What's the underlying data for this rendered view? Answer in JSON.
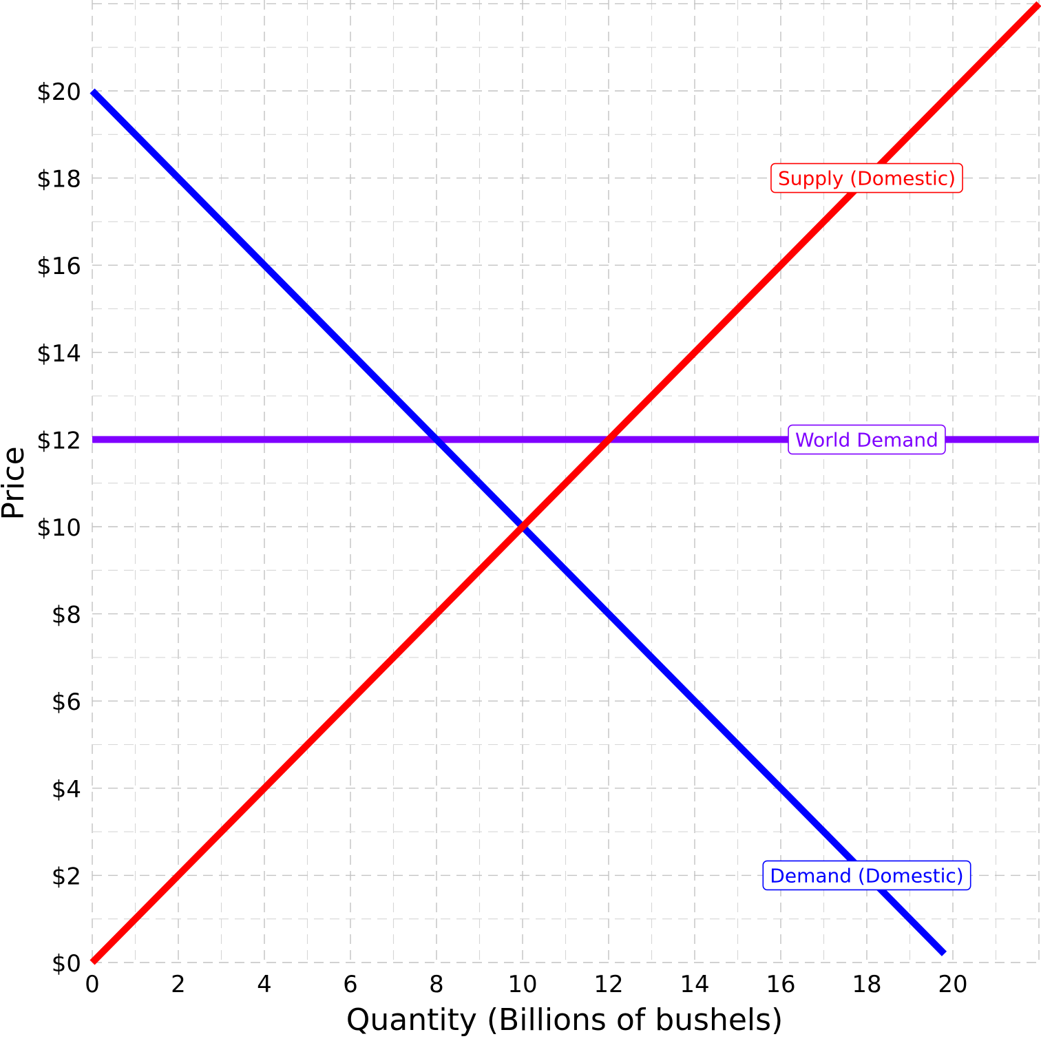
{
  "chart_data": {
    "type": "line",
    "title": "",
    "xlabel": "Quantity (Billions of bushels)",
    "ylabel": "Price",
    "xlim": [
      0,
      22
    ],
    "ylim": [
      0,
      22
    ],
    "grid": true,
    "x_ticks": [
      0,
      2,
      4,
      6,
      8,
      10,
      12,
      14,
      16,
      18,
      20
    ],
    "y_ticks": [
      0,
      2,
      4,
      6,
      8,
      10,
      12,
      14,
      16,
      18,
      20
    ],
    "x_tick_labels": [
      "0",
      "2",
      "4",
      "6",
      "8",
      "10",
      "12",
      "14",
      "16",
      "18",
      "20"
    ],
    "y_tick_labels": [
      "$0",
      "$2",
      "$4",
      "$6",
      "$8",
      "$10",
      "$12",
      "$14",
      "$16",
      "$18",
      "$20"
    ],
    "series": [
      {
        "key": "supply",
        "name": "Supply (Domestic)",
        "color": "#ff0000",
        "x": [
          0,
          22
        ],
        "y": [
          0,
          22
        ],
        "label_at": [
          18,
          18
        ]
      },
      {
        "key": "demand",
        "name": "Demand (Domestic)",
        "color": "#0000ff",
        "x": [
          0,
          19.8
        ],
        "y": [
          20,
          0.2
        ],
        "label_at": [
          18,
          2
        ]
      },
      {
        "key": "world-demand",
        "name": "World Demand",
        "color": "#7f00ff",
        "x": [
          0,
          22
        ],
        "y": [
          12,
          12
        ],
        "label_at": [
          18,
          12
        ]
      }
    ]
  }
}
